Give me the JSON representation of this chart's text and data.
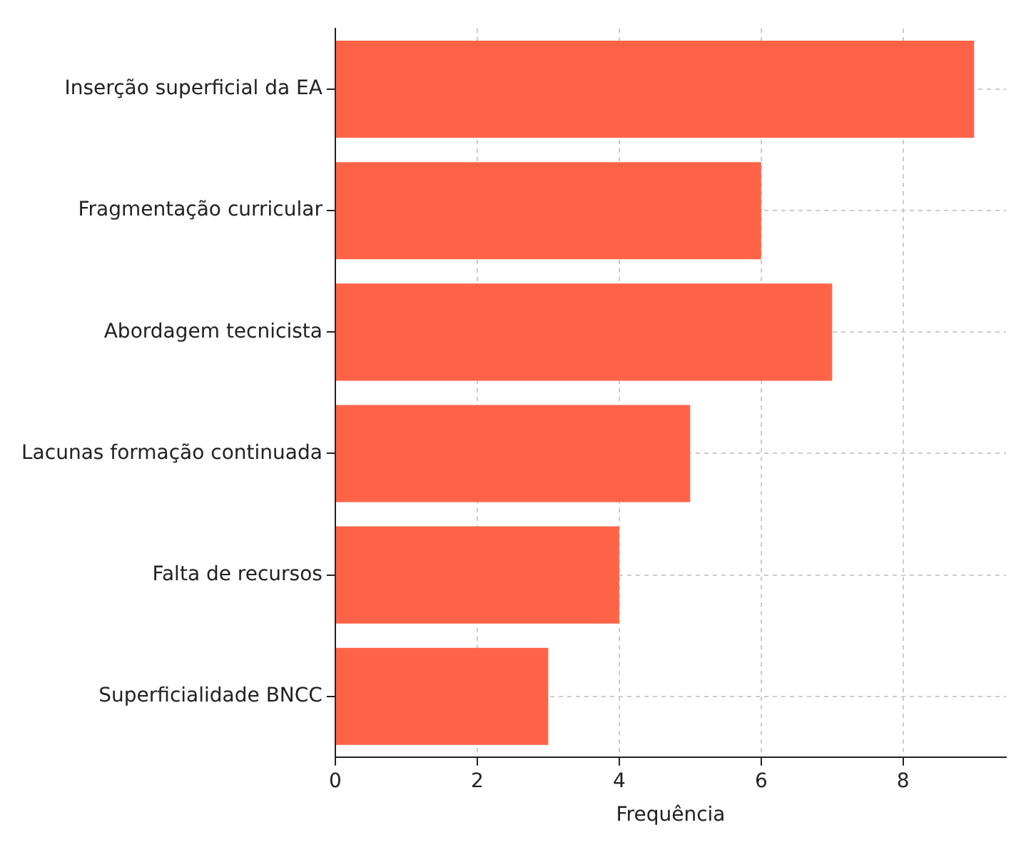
{
  "chart_data": {
    "type": "bar",
    "orientation": "horizontal",
    "xlabel": "Frequência",
    "categories": [
      "Inserção superficial da EA",
      "Fragmentação curricular",
      "Abordagem tecnicista",
      "Lacunas formação continuada",
      "Falta de recursos",
      "Superficialidade BNCC"
    ],
    "values": [
      9,
      6,
      7,
      5,
      4,
      3
    ],
    "color": "#ff6347",
    "xlim": [
      0,
      9.45
    ],
    "xticks": [
      0,
      2,
      4,
      6,
      8
    ],
    "grid": true,
    "legend": false
  }
}
